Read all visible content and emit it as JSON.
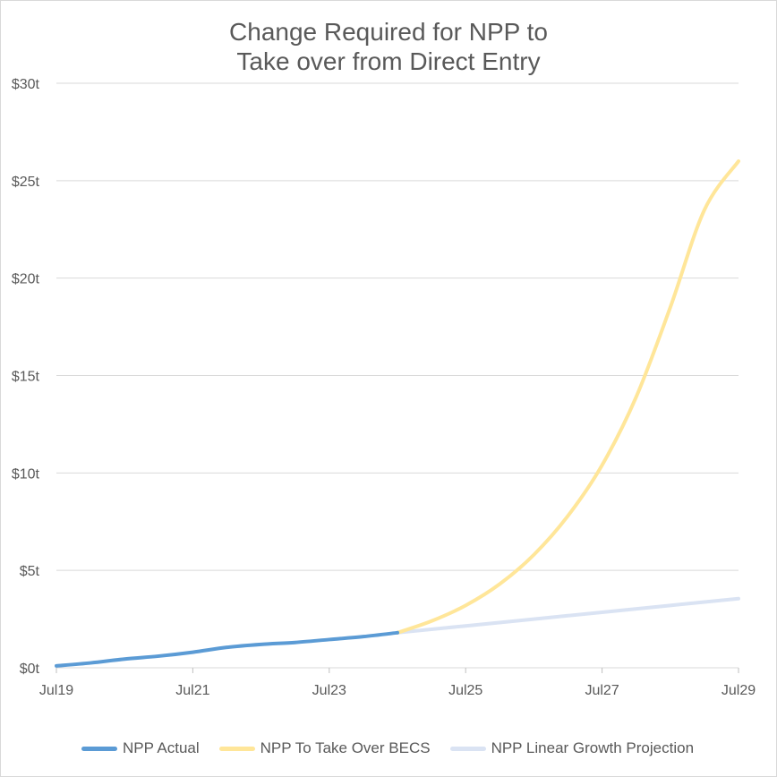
{
  "chart_data": {
    "type": "line",
    "title": [
      "Change Required for NPP to",
      "Take over from Direct Entry"
    ],
    "xlabel": "",
    "ylabel": "",
    "x_ticks": [
      "Jul19",
      "Jul21",
      "Jul23",
      "Jul25",
      "Jul27",
      "Jul29"
    ],
    "y_ticks": [
      "$0t",
      "$5t",
      "$10t",
      "$15t",
      "$20t",
      "$25t",
      "$30t"
    ],
    "xlim": [
      "2019-07",
      "2029-07"
    ],
    "ylim": [
      0,
      30
    ],
    "grid": "horizontal",
    "legend_position": "bottom",
    "series": [
      {
        "name": "NPP Actual",
        "color": "#5b9bd5",
        "points": [
          [
            "2019-07",
            0.1
          ],
          [
            "2020-01",
            0.25
          ],
          [
            "2020-07",
            0.45
          ],
          [
            "2021-01",
            0.6
          ],
          [
            "2021-07",
            0.8
          ],
          [
            "2022-01",
            1.05
          ],
          [
            "2022-07",
            1.2
          ],
          [
            "2023-01",
            1.3
          ],
          [
            "2023-07",
            1.45
          ],
          [
            "2024-01",
            1.6
          ],
          [
            "2024-07",
            1.8
          ]
        ]
      },
      {
        "name": "NPP To Take Over BECS",
        "color": "#ffe699",
        "points": [
          [
            "2024-07",
            1.8
          ],
          [
            "2025-01",
            2.4
          ],
          [
            "2025-07",
            3.2
          ],
          [
            "2026-01",
            4.3
          ],
          [
            "2026-07",
            5.8
          ],
          [
            "2027-01",
            7.8
          ],
          [
            "2027-07",
            10.4
          ],
          [
            "2028-01",
            13.9
          ],
          [
            "2028-07",
            18.5
          ],
          [
            "2029-01",
            23.5
          ],
          [
            "2029-07",
            26.0
          ]
        ]
      },
      {
        "name": "NPP Linear Growth Projection",
        "color": "#dae3f3",
        "points": [
          [
            "2024-07",
            1.8
          ],
          [
            "2025-07",
            2.15
          ],
          [
            "2026-07",
            2.5
          ],
          [
            "2027-07",
            2.85
          ],
          [
            "2028-07",
            3.2
          ],
          [
            "2029-07",
            3.55
          ]
        ]
      }
    ]
  }
}
